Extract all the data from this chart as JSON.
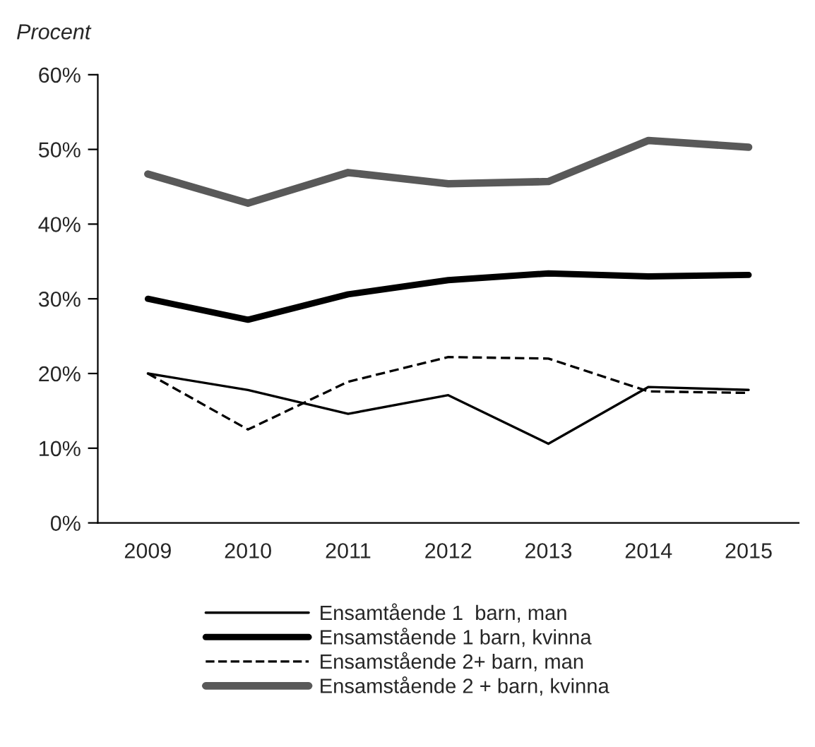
{
  "chart_data": {
    "type": "line",
    "ylabel": "Procent",
    "categories": [
      "2009",
      "2010",
      "2011",
      "2012",
      "2013",
      "2014",
      "2015"
    ],
    "ylim": [
      0,
      60
    ],
    "yticks": [
      {
        "value": 0,
        "label": "0%"
      },
      {
        "value": 10,
        "label": "10%"
      },
      {
        "value": 20,
        "label": "20%"
      },
      {
        "value": 30,
        "label": "30%"
      },
      {
        "value": 40,
        "label": "40%"
      },
      {
        "value": 50,
        "label": "50%"
      },
      {
        "value": 60,
        "label": "60%"
      }
    ],
    "grid": false,
    "legend": "bottom",
    "series": [
      {
        "name": "Ensamtående 1  barn, man",
        "color": "#000000",
        "line_style": "solid",
        "values": [
          20.0,
          17.8,
          14.6,
          17.1,
          10.6,
          18.2,
          17.8
        ]
      },
      {
        "name": "Ensamstående 1 barn, kvinna",
        "color": "#000000",
        "line_style": "solid",
        "values": [
          30.0,
          27.2,
          30.6,
          32.5,
          33.4,
          33.0,
          33.2
        ]
      },
      {
        "name": "Ensamstående 2+ barn, man",
        "color": "#000000",
        "line_style": "dashed",
        "values": [
          20.0,
          12.5,
          18.9,
          22.2,
          22.0,
          17.6,
          17.4
        ]
      },
      {
        "name": "Ensamstående 2 + barn, kvinna",
        "color": "#595959",
        "line_style": "solid",
        "values": [
          46.7,
          42.8,
          46.9,
          45.4,
          45.7,
          51.2,
          50.3
        ]
      }
    ]
  }
}
